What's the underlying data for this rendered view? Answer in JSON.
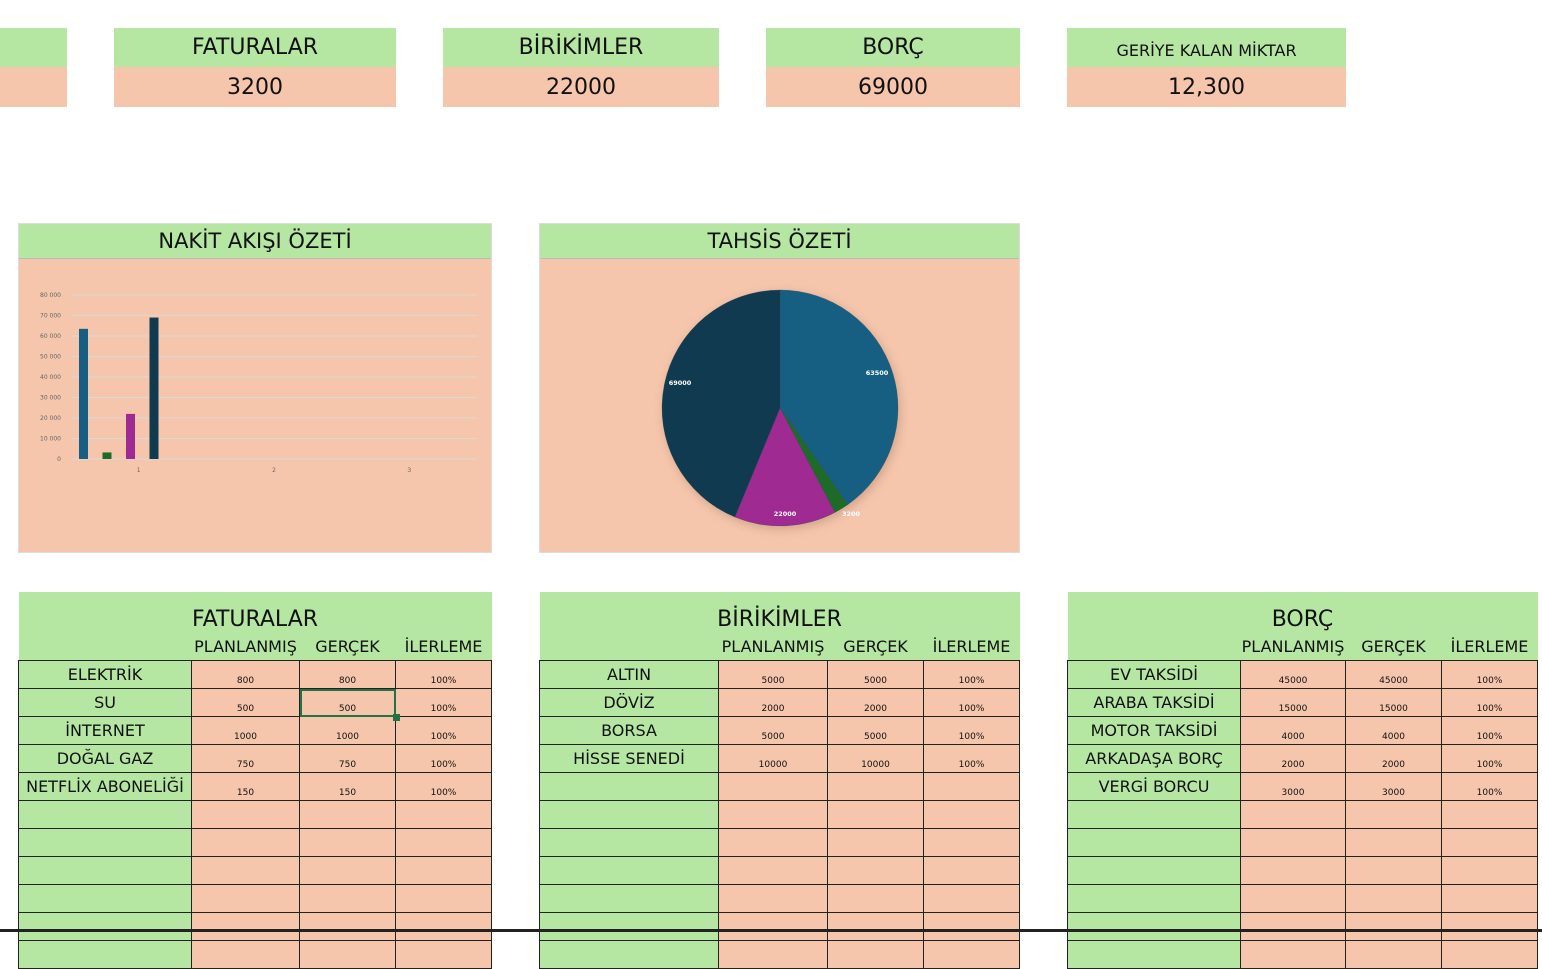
{
  "summary_cards": [
    {
      "title": "",
      "value": ""
    },
    {
      "title": "FATURALAR",
      "value": "3200"
    },
    {
      "title": "BİRİKİMLER",
      "value": "22000"
    },
    {
      "title": "BORÇ",
      "value": "69000"
    },
    {
      "title": "GERİYE KALAN MİKTAR",
      "value": "12,300"
    }
  ],
  "colors": {
    "header_green": "#b5e6a2",
    "cell_peach": "#f5c6ab",
    "series": [
      "#175f82",
      "#1e6b28",
      "#9e2a92",
      "#0f3a50"
    ]
  },
  "chart_data": [
    {
      "type": "bar",
      "title": "NAKİT AKIŞI ÖZETİ",
      "categories": [
        "1",
        "2",
        "3"
      ],
      "series": [
        {
          "values": [
            63500,
            null,
            null
          ]
        },
        {
          "values": [
            3200,
            null,
            null
          ]
        },
        {
          "values": [
            22000,
            null,
            null
          ]
        },
        {
          "values": [
            69000,
            null,
            null
          ]
        }
      ],
      "ylim": [
        0,
        80000
      ],
      "yticks": [
        "0",
        "10 000",
        "20 000",
        "30 000",
        "40 000",
        "50 000",
        "60 000",
        "70 000",
        "80 000"
      ],
      "grid": true
    },
    {
      "type": "pie",
      "title": "TAHSİS ÖZETİ",
      "values": [
        63500,
        3200,
        22000,
        69000
      ],
      "labels": [
        "63500",
        "3200",
        "22000",
        "69000"
      ]
    }
  ],
  "tables": [
    {
      "title": "FATURALAR",
      "headers": [
        "PLANLANMIŞ",
        "GERÇEK",
        "İLERLEME"
      ],
      "rows": [
        [
          "ELEKTRİK",
          "800",
          "800",
          "100%"
        ],
        [
          "SU",
          "500",
          "500",
          "100%"
        ],
        [
          "İNTERNET",
          "1000",
          "1000",
          "100%"
        ],
        [
          "DOĞAL GAZ",
          "750",
          "750",
          "100%"
        ],
        [
          "NETFLİX ABONELİĞİ",
          "150",
          "150",
          "100%"
        ]
      ]
    },
    {
      "title": "BİRİKİMLER",
      "headers": [
        "PLANLANMIŞ",
        "GERÇEK",
        "İLERLEME"
      ],
      "rows": [
        [
          "ALTIN",
          "5000",
          "5000",
          "100%"
        ],
        [
          "DÖVİZ",
          "2000",
          "2000",
          "100%"
        ],
        [
          "BORSA",
          "5000",
          "5000",
          "100%"
        ],
        [
          "HİSSE SENEDİ",
          "10000",
          "10000",
          "100%"
        ]
      ]
    },
    {
      "title": "BORÇ",
      "headers": [
        "PLANLANMIŞ",
        "GERÇEK",
        "İLERLEME"
      ],
      "rows": [
        [
          "EV TAKSİDİ",
          "45000",
          "45000",
          "100%"
        ],
        [
          "ARABA TAKSİDİ",
          "15000",
          "15000",
          "100%"
        ],
        [
          "MOTOR TAKSİDİ",
          "4000",
          "4000",
          "100%"
        ],
        [
          "ARKADAŞA BORÇ",
          "2000",
          "2000",
          "100%"
        ],
        [
          "VERGİ BORCU",
          "3000",
          "3000",
          "100%"
        ]
      ]
    }
  ]
}
